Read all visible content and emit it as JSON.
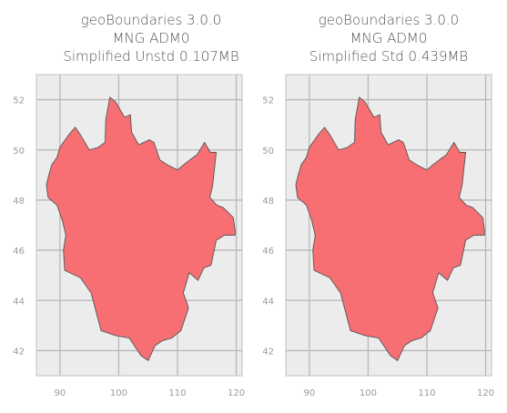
{
  "chart_data": [
    {
      "type": "map",
      "title_lines": [
        "geoBoundaries 3.0.0",
        "MNG ADM0",
        "Simplified Unstd 0.107MB"
      ],
      "xlim": [
        86,
        121
      ],
      "ylim": [
        41,
        53
      ],
      "xticks": [
        90,
        100,
        110,
        120
      ],
      "yticks": [
        42,
        44,
        46,
        48,
        50,
        52
      ],
      "grid": true,
      "fill_color": "#f76f73",
      "edge_color": "#555555",
      "background": "#ececec",
      "polygon": [
        [
          88.0,
          48.9
        ],
        [
          88.6,
          49.4
        ],
        [
          89.5,
          49.7
        ],
        [
          90.0,
          50.1
        ],
        [
          91.5,
          50.6
        ],
        [
          92.6,
          50.9
        ],
        [
          93.5,
          50.6
        ],
        [
          95.0,
          50.0
        ],
        [
          96.5,
          50.1
        ],
        [
          97.7,
          50.3
        ],
        [
          97.8,
          51.2
        ],
        [
          98.5,
          52.1
        ],
        [
          99.5,
          51.9
        ],
        [
          100.5,
          51.5
        ],
        [
          101.0,
          51.3
        ],
        [
          102.0,
          51.4
        ],
        [
          102.2,
          50.7
        ],
        [
          103.4,
          50.2
        ],
        [
          105.2,
          50.4
        ],
        [
          106.0,
          50.3
        ],
        [
          107.0,
          49.6
        ],
        [
          108.3,
          49.4
        ],
        [
          110.0,
          49.2
        ],
        [
          111.0,
          49.4
        ],
        [
          112.1,
          49.6
        ],
        [
          113.3,
          49.8
        ],
        [
          114.6,
          50.3
        ],
        [
          115.6,
          49.9
        ],
        [
          116.6,
          49.9
        ],
        [
          116.0,
          48.6
        ],
        [
          115.5,
          48.1
        ],
        [
          116.7,
          47.8
        ],
        [
          117.8,
          47.7
        ],
        [
          119.5,
          47.3
        ],
        [
          119.8,
          46.8
        ],
        [
          119.8,
          46.6
        ],
        [
          118.0,
          46.6
        ],
        [
          116.6,
          46.4
        ],
        [
          115.7,
          45.4
        ],
        [
          114.5,
          45.3
        ],
        [
          113.5,
          44.8
        ],
        [
          112.0,
          45.1
        ],
        [
          111.0,
          44.3
        ],
        [
          111.9,
          43.7
        ],
        [
          110.6,
          42.8
        ],
        [
          109.0,
          42.5
        ],
        [
          107.5,
          42.4
        ],
        [
          106.2,
          42.2
        ],
        [
          105.0,
          41.6
        ],
        [
          103.8,
          41.8
        ],
        [
          101.8,
          42.5
        ],
        [
          99.5,
          42.6
        ],
        [
          97.0,
          42.8
        ],
        [
          95.3,
          44.3
        ],
        [
          93.5,
          44.9
        ],
        [
          90.8,
          45.2
        ],
        [
          90.6,
          46.0
        ],
        [
          91.0,
          46.6
        ],
        [
          90.4,
          47.2
        ],
        [
          89.5,
          47.8
        ],
        [
          88.0,
          48.1
        ],
        [
          87.7,
          48.6
        ],
        [
          88.0,
          48.9
        ]
      ]
    },
    {
      "type": "map",
      "title_lines": [
        "geoBoundaries 3.0.0",
        "MNG ADM0",
        "Simplified Std 0.439MB"
      ],
      "xlim": [
        86,
        121
      ],
      "ylim": [
        41,
        53
      ],
      "xticks": [
        90,
        100,
        110,
        120
      ],
      "yticks": [
        42,
        44,
        46,
        48,
        50,
        52
      ],
      "grid": true,
      "fill_color": "#f76f73",
      "edge_color": "#555555",
      "background": "#ececec",
      "polygon": [
        [
          88.0,
          48.9
        ],
        [
          88.6,
          49.4
        ],
        [
          89.5,
          49.7
        ],
        [
          90.0,
          50.1
        ],
        [
          91.5,
          50.6
        ],
        [
          92.6,
          50.9
        ],
        [
          93.5,
          50.6
        ],
        [
          95.0,
          50.0
        ],
        [
          96.5,
          50.1
        ],
        [
          97.7,
          50.3
        ],
        [
          97.8,
          51.2
        ],
        [
          98.5,
          52.1
        ],
        [
          99.5,
          51.9
        ],
        [
          100.5,
          51.5
        ],
        [
          101.0,
          51.3
        ],
        [
          102.0,
          51.4
        ],
        [
          102.2,
          50.7
        ],
        [
          103.4,
          50.2
        ],
        [
          105.2,
          50.4
        ],
        [
          106.0,
          50.3
        ],
        [
          107.0,
          49.6
        ],
        [
          108.3,
          49.4
        ],
        [
          110.0,
          49.2
        ],
        [
          111.0,
          49.4
        ],
        [
          112.1,
          49.6
        ],
        [
          113.3,
          49.8
        ],
        [
          114.6,
          50.3
        ],
        [
          115.6,
          49.9
        ],
        [
          116.6,
          49.9
        ],
        [
          116.0,
          48.6
        ],
        [
          115.5,
          48.1
        ],
        [
          116.7,
          47.8
        ],
        [
          117.8,
          47.7
        ],
        [
          119.5,
          47.3
        ],
        [
          119.8,
          46.8
        ],
        [
          119.8,
          46.6
        ],
        [
          118.0,
          46.6
        ],
        [
          116.6,
          46.4
        ],
        [
          115.7,
          45.4
        ],
        [
          114.5,
          45.3
        ],
        [
          113.5,
          44.8
        ],
        [
          112.0,
          45.1
        ],
        [
          111.0,
          44.3
        ],
        [
          111.9,
          43.7
        ],
        [
          110.6,
          42.8
        ],
        [
          109.0,
          42.5
        ],
        [
          107.5,
          42.4
        ],
        [
          106.2,
          42.2
        ],
        [
          105.0,
          41.6
        ],
        [
          103.8,
          41.8
        ],
        [
          101.8,
          42.5
        ],
        [
          99.5,
          42.6
        ],
        [
          97.0,
          42.8
        ],
        [
          95.3,
          44.3
        ],
        [
          93.5,
          44.9
        ],
        [
          90.8,
          45.2
        ],
        [
          90.6,
          46.0
        ],
        [
          91.0,
          46.6
        ],
        [
          90.4,
          47.2
        ],
        [
          89.5,
          47.8
        ],
        [
          88.0,
          48.1
        ],
        [
          87.7,
          48.6
        ],
        [
          88.0,
          48.9
        ]
      ]
    }
  ]
}
